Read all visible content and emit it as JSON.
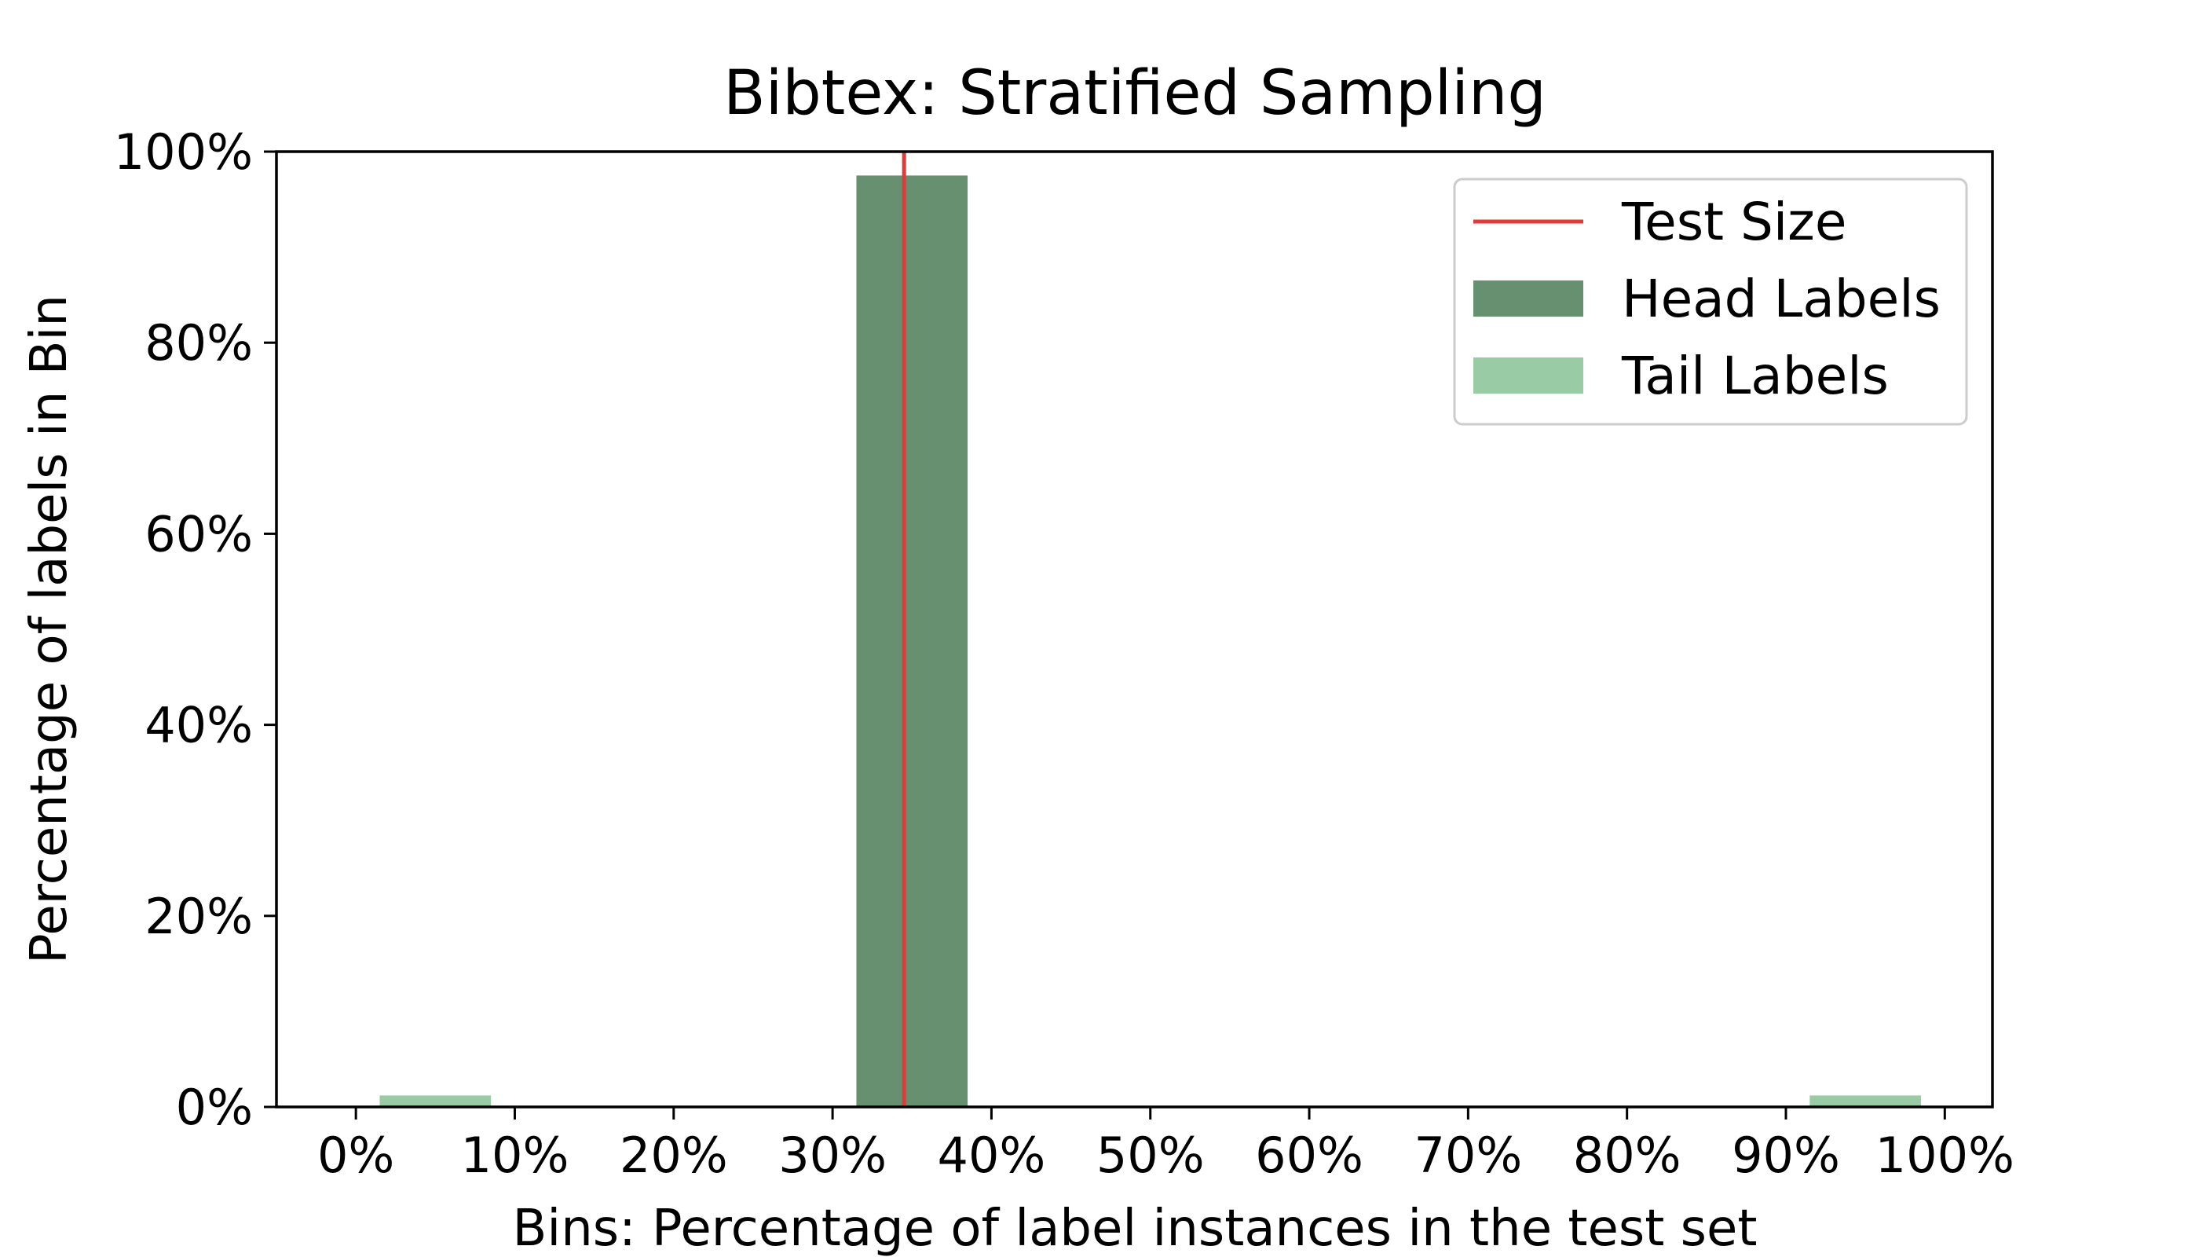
{
  "chart_data": {
    "type": "bar",
    "title": "Bibtex: Stratified Sampling",
    "xlabel": "Bins: Percentage of label instances in the test set",
    "ylabel": "Percentage of labels in Bin",
    "xlim": [
      -5,
      103
    ],
    "ylim": [
      0,
      100
    ],
    "x_ticks": [
      0,
      10,
      20,
      30,
      40,
      50,
      60,
      70,
      80,
      90,
      100
    ],
    "x_tick_labels": [
      "0%",
      "10%",
      "20%",
      "30%",
      "40%",
      "50%",
      "60%",
      "70%",
      "80%",
      "90%",
      "100%"
    ],
    "y_ticks": [
      0,
      20,
      40,
      60,
      80,
      100
    ],
    "y_tick_labels": [
      "0%",
      "20%",
      "40%",
      "60%",
      "80%",
      "100%"
    ],
    "bin_width": 7,
    "series": [
      {
        "name": "Head Labels",
        "color": "#679070",
        "bars": [
          {
            "x": 35,
            "value": 97.5
          }
        ]
      },
      {
        "name": "Tail Labels",
        "color": "#99cba5",
        "bars": [
          {
            "x": 5,
            "value": 1.2
          },
          {
            "x": 95,
            "value": 1.2
          }
        ]
      }
    ],
    "reference_line": {
      "name": "Test Size",
      "x": 34.5,
      "color": "#e03a3a"
    },
    "legend": {
      "placement": "top-right",
      "entries": [
        "Test Size",
        "Head Labels",
        "Tail Labels"
      ]
    },
    "grid": false
  }
}
